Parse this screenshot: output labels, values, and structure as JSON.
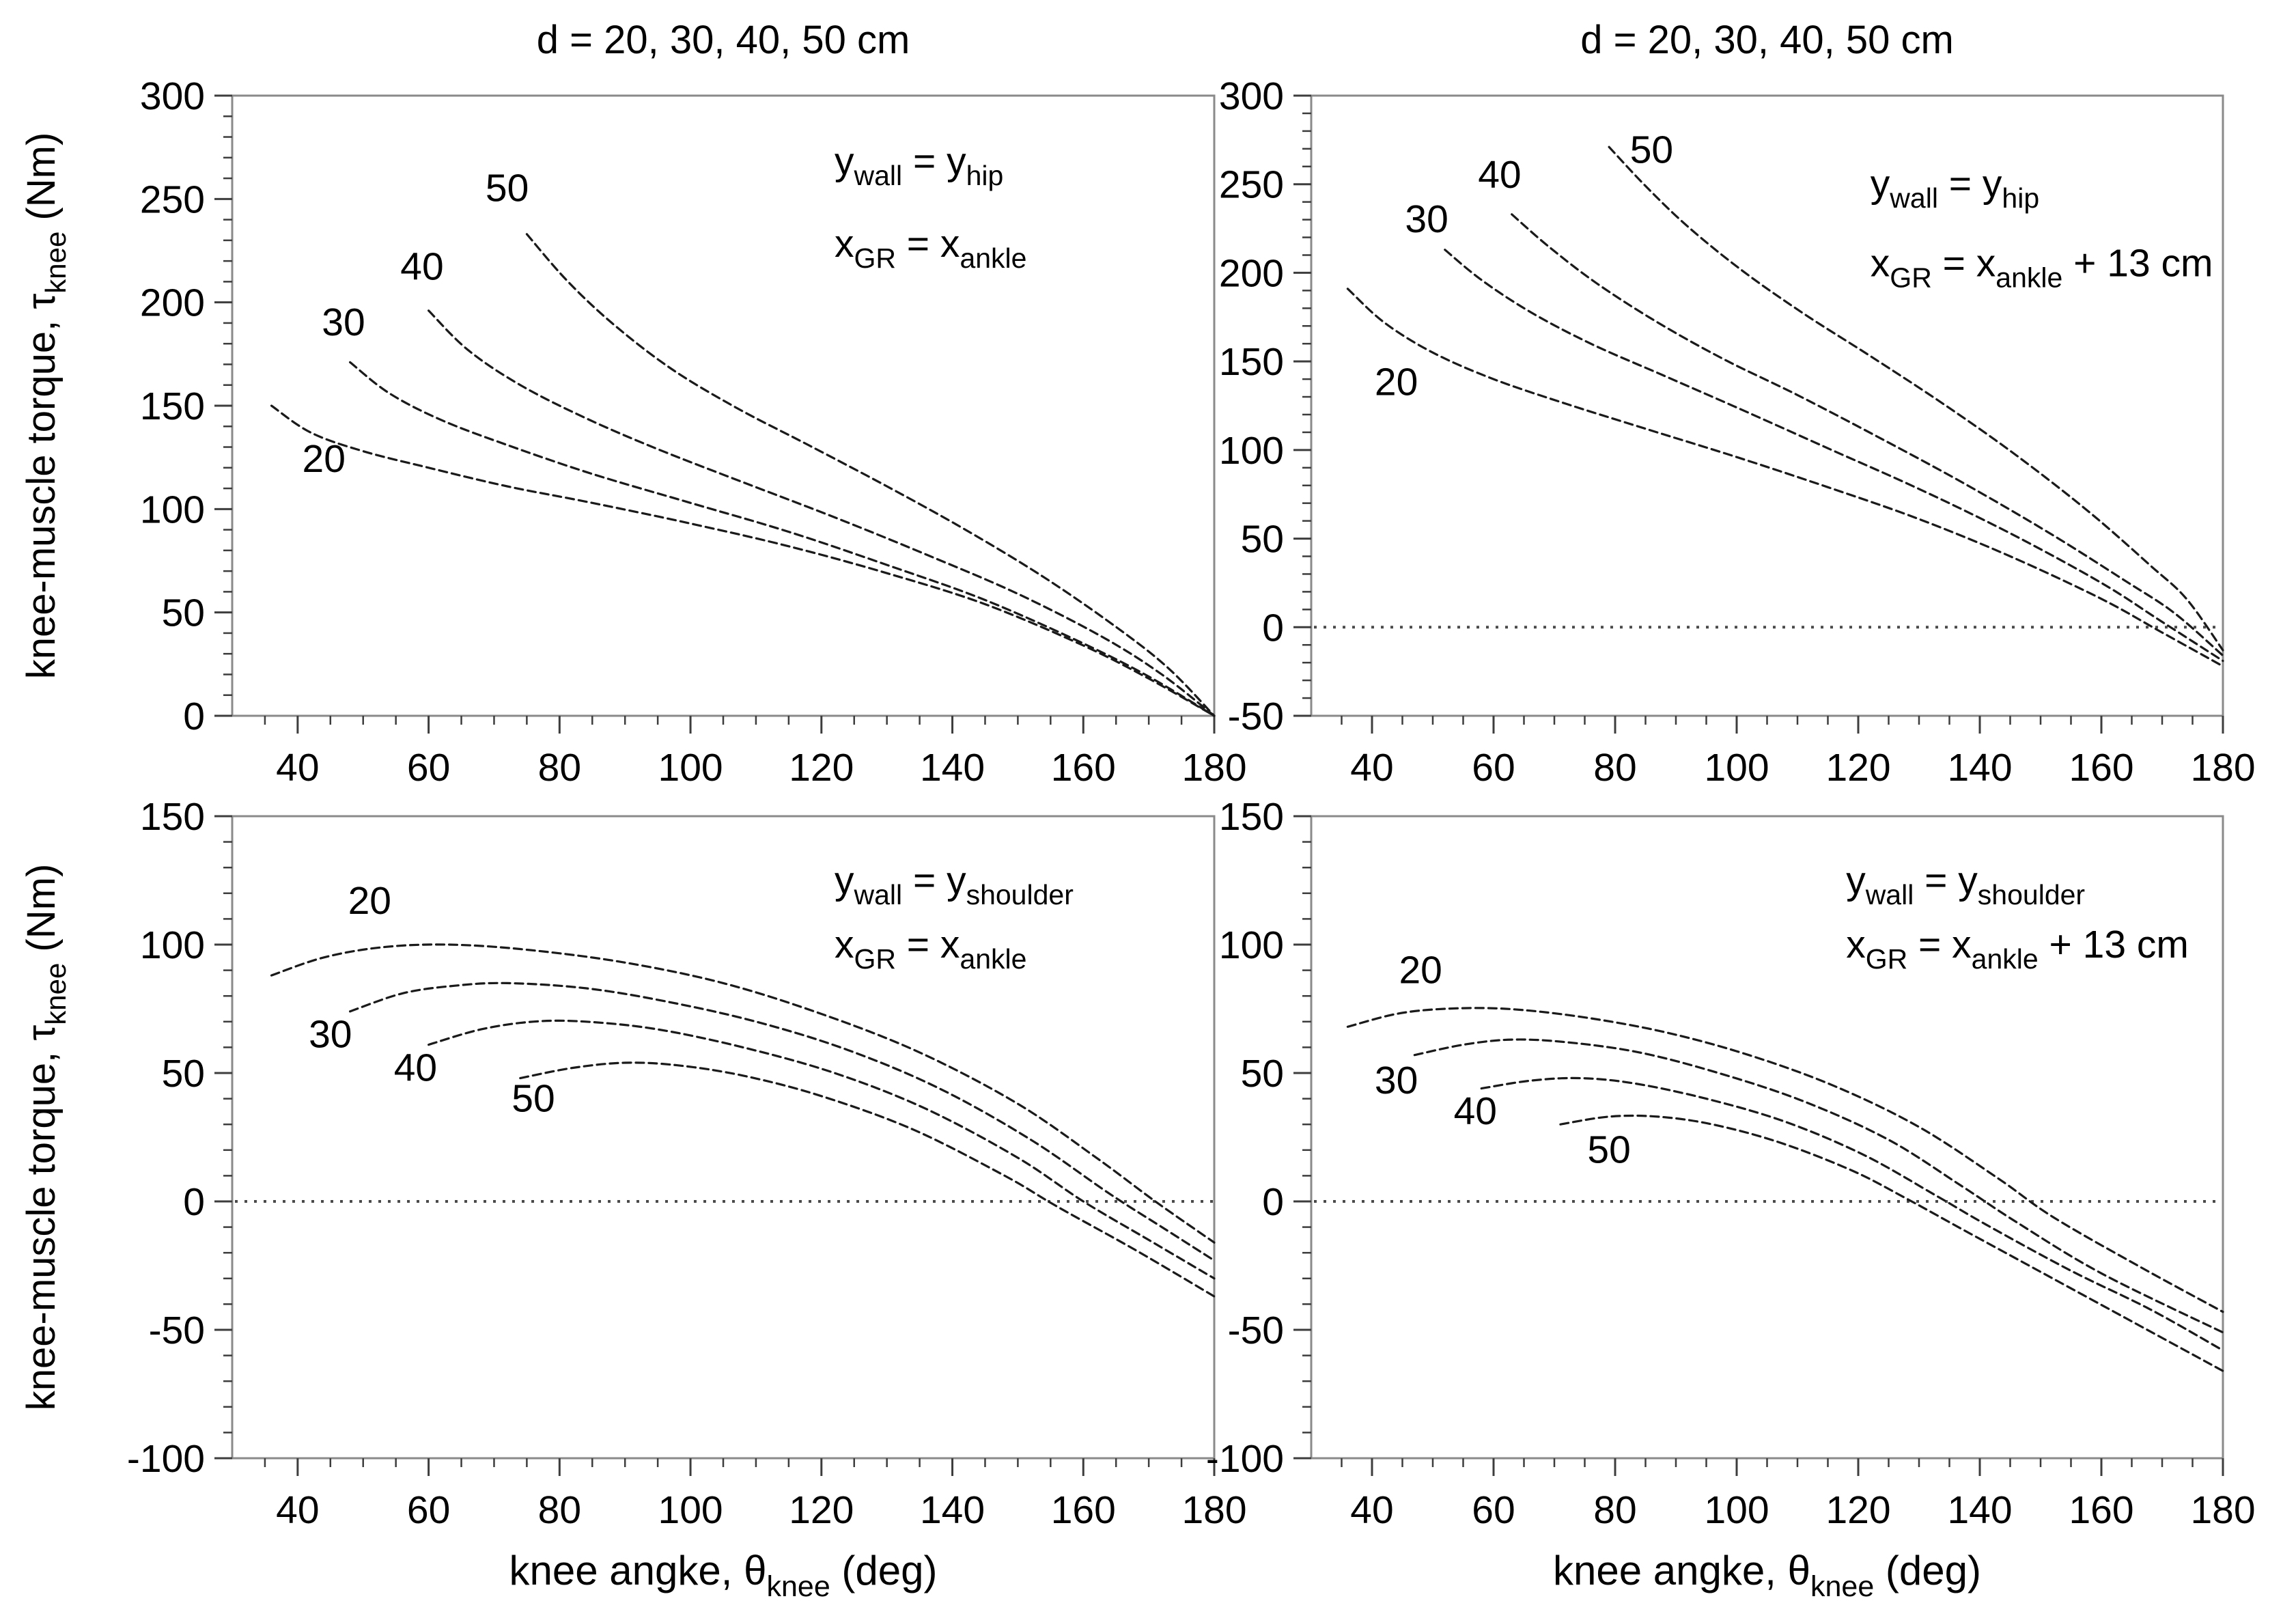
{
  "figure": {
    "background": "#ffffff",
    "text_color": "#000000",
    "frame_color": "#8a8a8a",
    "tick_color": "#3d3d3d",
    "curve_color": "#1a1a1a",
    "zero_line_color": "#4a4a4a"
  },
  "chart_data": [
    {
      "id": "top-left",
      "type": "line",
      "title": "d = 20, 30, 40, 50 cm",
      "xlabel": null,
      "ylabel": "knee-muscle torque, τ_{knee} (Nm)",
      "xlim": [
        30,
        180
      ],
      "ylim": [
        0,
        300
      ],
      "x_major_step": 20,
      "x_minor_step": 5,
      "y_major_step": 50,
      "y_minor_step": 10,
      "xtick_labels": [
        40,
        60,
        80,
        100,
        120,
        140,
        160,
        180
      ],
      "ytick_labels": [
        0,
        50,
        100,
        150,
        200,
        250,
        300
      ],
      "grid": false,
      "zero_line": false,
      "annotations": [
        {
          "text": "y_{wall} = y_{hip}",
          "x": 122,
          "y": 262
        },
        {
          "text": "x_{GR} = x_{ankle}",
          "x": 122,
          "y": 222
        }
      ],
      "series": [
        {
          "name": "d = 20 cm",
          "label": "20",
          "label_x": 44,
          "label_y": 118,
          "points": [
            [
              36,
              150
            ],
            [
              42,
              137
            ],
            [
              50,
              128
            ],
            [
              60,
              120
            ],
            [
              72,
              111
            ],
            [
              85,
              103
            ],
            [
              100,
              93
            ],
            [
              115,
              82
            ],
            [
              130,
              69
            ],
            [
              145,
              54
            ],
            [
              160,
              34
            ],
            [
              170,
              18
            ],
            [
              180,
              0
            ]
          ]
        },
        {
          "name": "d = 30 cm",
          "label": "30",
          "label_x": 47,
          "label_y": 184,
          "points": [
            [
              48,
              171
            ],
            [
              54,
              156
            ],
            [
              62,
              143
            ],
            [
              72,
              131
            ],
            [
              85,
              117
            ],
            [
              100,
              103
            ],
            [
              115,
              89
            ],
            [
              130,
              73
            ],
            [
              145,
              56
            ],
            [
              160,
              35
            ],
            [
              170,
              19
            ],
            [
              180,
              0
            ]
          ]
        },
        {
          "name": "d = 40 cm",
          "label": "40",
          "label_x": 59,
          "label_y": 211,
          "points": [
            [
              60,
              196
            ],
            [
              66,
              177
            ],
            [
              74,
              160
            ],
            [
              84,
              144
            ],
            [
              95,
              129
            ],
            [
              108,
              113
            ],
            [
              122,
              96
            ],
            [
              136,
              78
            ],
            [
              150,
              59
            ],
            [
              163,
              38
            ],
            [
              172,
              20
            ],
            [
              180,
              0
            ]
          ]
        },
        {
          "name": "d = 50 cm",
          "label": "50",
          "label_x": 72,
          "label_y": 249,
          "points": [
            [
              75,
              233
            ],
            [
              81,
              211
            ],
            [
              88,
              190
            ],
            [
              97,
              168
            ],
            [
              107,
              149
            ],
            [
              118,
              131
            ],
            [
              130,
              111
            ],
            [
              142,
              90
            ],
            [
              154,
              67
            ],
            [
              165,
              43
            ],
            [
              173,
              23
            ],
            [
              180,
              0
            ]
          ]
        }
      ]
    },
    {
      "id": "top-right",
      "type": "line",
      "title": "d = 20, 30, 40, 50 cm",
      "xlabel": null,
      "ylabel": null,
      "xlim": [
        30,
        180
      ],
      "ylim": [
        -50,
        300
      ],
      "x_major_step": 20,
      "x_minor_step": 5,
      "y_major_step": 50,
      "y_minor_step": 10,
      "xtick_labels": [
        40,
        60,
        80,
        100,
        120,
        140,
        160,
        180
      ],
      "ytick_labels": [
        -50,
        0,
        50,
        100,
        150,
        200,
        250,
        300
      ],
      "grid": false,
      "zero_line": true,
      "annotations": [
        {
          "text": "y_{wall} = y_{hip}",
          "x": 122,
          "y": 243
        },
        {
          "text": "x_{GR} = x_{ankle} + 13 cm",
          "x": 122,
          "y": 198
        }
      ],
      "series": [
        {
          "name": "d = 20 cm",
          "label": "20",
          "label_x": 44,
          "label_y": 131,
          "points": [
            [
              36,
              191
            ],
            [
              42,
              172
            ],
            [
              50,
              155
            ],
            [
              60,
              140
            ],
            [
              72,
              126
            ],
            [
              85,
              112
            ],
            [
              100,
              96
            ],
            [
              115,
              79
            ],
            [
              130,
              61
            ],
            [
              145,
              40
            ],
            [
              160,
              16
            ],
            [
              170,
              -3
            ],
            [
              180,
              -22
            ]
          ]
        },
        {
          "name": "d = 30 cm",
          "label": "30",
          "label_x": 49,
          "label_y": 223,
          "points": [
            [
              52,
              213
            ],
            [
              58,
              196
            ],
            [
              66,
              178
            ],
            [
              76,
              160
            ],
            [
              88,
              142
            ],
            [
              100,
              124
            ],
            [
              115,
              101
            ],
            [
              130,
              78
            ],
            [
              145,
              53
            ],
            [
              160,
              25
            ],
            [
              170,
              3
            ],
            [
              180,
              -19
            ]
          ]
        },
        {
          "name": "d = 40 cm",
          "label": "40",
          "label_x": 61,
          "label_y": 248,
          "points": [
            [
              63,
              233
            ],
            [
              69,
              215
            ],
            [
              77,
              194
            ],
            [
              87,
              172
            ],
            [
              98,
              151
            ],
            [
              110,
              131
            ],
            [
              124,
              106
            ],
            [
              138,
              80
            ],
            [
              152,
              52
            ],
            [
              164,
              26
            ],
            [
              172,
              8
            ],
            [
              180,
              -16
            ]
          ]
        },
        {
          "name": "d = 50 cm",
          "label": "50",
          "label_x": 86,
          "label_y": 262,
          "points": [
            [
              79,
              271
            ],
            [
              85,
              249
            ],
            [
              92,
              226
            ],
            [
              101,
              201
            ],
            [
              111,
              177
            ],
            [
              122,
              153
            ],
            [
              134,
              126
            ],
            [
              146,
              97
            ],
            [
              158,
              65
            ],
            [
              168,
              35
            ],
            [
              174,
              16
            ],
            [
              180,
              -13
            ]
          ]
        }
      ]
    },
    {
      "id": "bottom-left",
      "type": "line",
      "title": null,
      "xlabel": "knee angke, θ_{knee} (deg)",
      "ylabel": "knee-muscle torque, τ_{knee} (Nm)",
      "xlim": [
        30,
        180
      ],
      "ylim": [
        -100,
        150
      ],
      "x_major_step": 20,
      "x_minor_step": 5,
      "y_major_step": 50,
      "y_minor_step": 10,
      "xtick_labels": [
        40,
        60,
        80,
        100,
        120,
        140,
        160,
        180
      ],
      "ytick_labels": [
        -100,
        -50,
        0,
        50,
        100,
        150
      ],
      "grid": false,
      "zero_line": true,
      "annotations": [
        {
          "text": "y_{wall} = y_{shoulder}",
          "x": 122,
          "y": 120
        },
        {
          "text": "x_{GR} = x_{ankle}",
          "x": 122,
          "y": 95
        }
      ],
      "series": [
        {
          "name": "d = 20 cm",
          "label": "20",
          "label_x": 51,
          "label_y": 112,
          "points": [
            [
              36,
              88
            ],
            [
              44,
              95
            ],
            [
              53,
              99
            ],
            [
              63,
              100
            ],
            [
              75,
              98
            ],
            [
              90,
              93
            ],
            [
              105,
              85
            ],
            [
              120,
              73
            ],
            [
              135,
              58
            ],
            [
              150,
              38
            ],
            [
              162,
              17
            ],
            [
              171,
              0
            ],
            [
              180,
              -16
            ]
          ]
        },
        {
          "name": "d = 30 cm",
          "label": "30",
          "label_x": 45,
          "label_y": 60,
          "points": [
            [
              48,
              74
            ],
            [
              56,
              81
            ],
            [
              64,
              84
            ],
            [
              72,
              85
            ],
            [
              84,
              83
            ],
            [
              96,
              78
            ],
            [
              110,
              70
            ],
            [
              124,
              59
            ],
            [
              138,
              44
            ],
            [
              152,
              24
            ],
            [
              164,
              3
            ],
            [
              172,
              -10
            ],
            [
              180,
              -23
            ]
          ]
        },
        {
          "name": "d = 40 cm",
          "label": "40",
          "label_x": 58,
          "label_y": 47,
          "points": [
            [
              60,
              61
            ],
            [
              68,
              67
            ],
            [
              76,
              70
            ],
            [
              84,
              70
            ],
            [
              95,
              67
            ],
            [
              108,
              60
            ],
            [
              122,
              50
            ],
            [
              136,
              36
            ],
            [
              150,
              17
            ],
            [
              160,
              0
            ],
            [
              170,
              -15
            ],
            [
              180,
              -30
            ]
          ]
        },
        {
          "name": "d = 50 cm",
          "label": "50",
          "label_x": 76,
          "label_y": 35,
          "points": [
            [
              74,
              48
            ],
            [
              82,
              52
            ],
            [
              90,
              54
            ],
            [
              98,
              53
            ],
            [
              108,
              49
            ],
            [
              120,
              41
            ],
            [
              134,
              28
            ],
            [
              148,
              10
            ],
            [
              156,
              -2
            ],
            [
              168,
              -19
            ],
            [
              180,
              -37
            ]
          ]
        }
      ]
    },
    {
      "id": "bottom-right",
      "type": "line",
      "title": null,
      "xlabel": "knee angke, θ_{knee} (deg)",
      "ylabel": null,
      "xlim": [
        30,
        180
      ],
      "ylim": [
        -100,
        150
      ],
      "x_major_step": 20,
      "x_minor_step": 5,
      "y_major_step": 50,
      "y_minor_step": 10,
      "xtick_labels": [
        40,
        60,
        80,
        100,
        120,
        140,
        160,
        180
      ],
      "ytick_labels": [
        -100,
        -50,
        0,
        50,
        100,
        150
      ],
      "grid": false,
      "zero_line": true,
      "annotations": [
        {
          "text": "y_{wall} = y_{shoulder}",
          "x": 118,
          "y": 120
        },
        {
          "text": "x_{GR} = x_{ankle} + 13 cm",
          "x": 118,
          "y": 95
        }
      ],
      "series": [
        {
          "name": "d = 20 cm",
          "label": "20",
          "label_x": 48,
          "label_y": 85,
          "points": [
            [
              36,
              68
            ],
            [
              44,
              73
            ],
            [
              52,
              75
            ],
            [
              62,
              75
            ],
            [
              74,
              72
            ],
            [
              88,
              66
            ],
            [
              102,
              57
            ],
            [
              116,
              45
            ],
            [
              130,
              29
            ],
            [
              143,
              9
            ],
            [
              152,
              -6
            ],
            [
              166,
              -25
            ],
            [
              180,
              -43
            ]
          ]
        },
        {
          "name": "d = 30 cm",
          "label": "30",
          "label_x": 44,
          "label_y": 42,
          "points": [
            [
              47,
              57
            ],
            [
              55,
              61
            ],
            [
              63,
              63
            ],
            [
              72,
              62
            ],
            [
              84,
              58
            ],
            [
              97,
              50
            ],
            [
              111,
              39
            ],
            [
              125,
              24
            ],
            [
              137,
              6
            ],
            [
              146,
              -8
            ],
            [
              160,
              -28
            ],
            [
              180,
              -51
            ]
          ]
        },
        {
          "name": "d = 40 cm",
          "label": "40",
          "label_x": 57,
          "label_y": 30,
          "points": [
            [
              58,
              44
            ],
            [
              66,
              47
            ],
            [
              74,
              48
            ],
            [
              83,
              46
            ],
            [
              95,
              40
            ],
            [
              108,
              31
            ],
            [
              121,
              18
            ],
            [
              133,
              2
            ],
            [
              141,
              -9
            ],
            [
              155,
              -27
            ],
            [
              168,
              -42
            ],
            [
              180,
              -58
            ]
          ]
        },
        {
          "name": "d = 50 cm",
          "label": "50",
          "label_x": 79,
          "label_y": 15,
          "points": [
            [
              71,
              30
            ],
            [
              79,
              33
            ],
            [
              87,
              33
            ],
            [
              96,
              30
            ],
            [
              107,
              23
            ],
            [
              119,
              12
            ],
            [
              128,
              1
            ],
            [
              138,
              -12
            ],
            [
              152,
              -30
            ],
            [
              166,
              -48
            ],
            [
              180,
              -66
            ]
          ]
        }
      ]
    }
  ]
}
